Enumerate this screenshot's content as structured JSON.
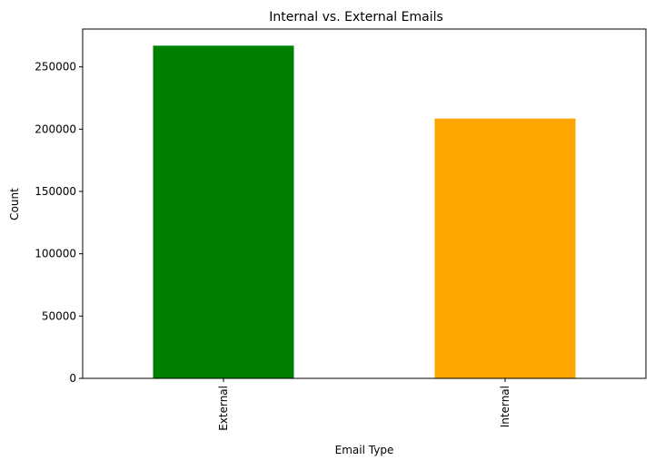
{
  "chart_data": {
    "type": "bar",
    "title": "Internal vs. External Emails",
    "xlabel": "Email Type",
    "ylabel": "Count",
    "categories": [
      "External",
      "Internal"
    ],
    "values": [
      267000,
      208500
    ],
    "colors": [
      "#008000",
      "#ffa500"
    ],
    "ylim": [
      0,
      280350
    ],
    "yticks": [
      0,
      50000,
      100000,
      150000,
      200000,
      250000
    ],
    "ytick_labels": [
      "0",
      "50000",
      "100000",
      "150000",
      "200000",
      "250000"
    ],
    "grid": false,
    "legend": "none"
  }
}
